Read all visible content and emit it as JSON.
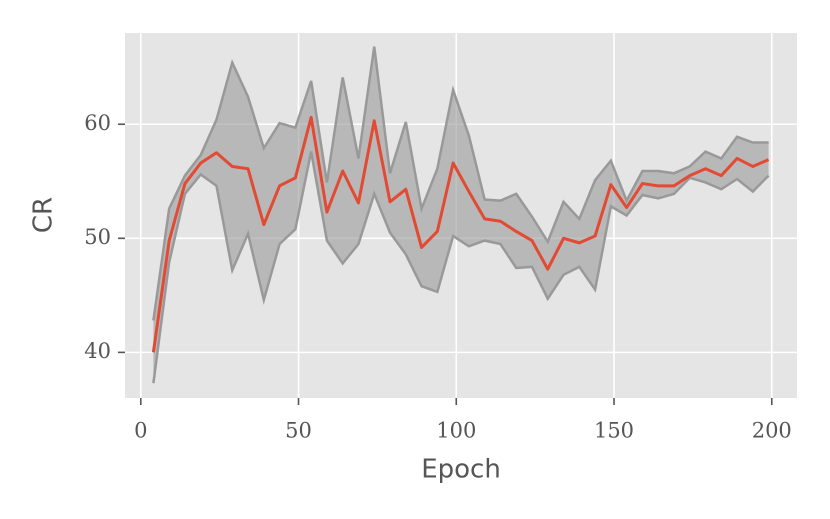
{
  "chart_data": {
    "type": "line",
    "xlabel": "Epoch",
    "ylabel": "CR",
    "x": [
      4,
      9,
      14,
      19,
      24,
      29,
      34,
      39,
      44,
      49,
      54,
      59,
      64,
      69,
      74,
      79,
      84,
      89,
      94,
      99,
      104,
      109,
      114,
      119,
      124,
      129,
      134,
      139,
      144,
      149,
      154,
      159,
      164,
      169,
      174,
      179,
      184,
      189,
      194,
      199
    ],
    "series": [
      {
        "color": "#e24a33",
        "values": [
          40.0,
          49.8,
          54.8,
          56.6,
          57.5,
          56.3,
          56.1,
          51.2,
          54.6,
          55.3,
          60.6,
          52.3,
          55.9,
          53.1,
          60.3,
          53.2,
          54.3,
          49.2,
          50.6,
          56.6,
          54.1,
          51.7,
          51.5,
          50.6,
          49.8,
          47.3,
          50.0,
          49.6,
          50.2,
          54.7,
          52.7,
          54.8,
          54.6,
          54.6,
          55.5,
          56.1,
          55.5,
          57.0,
          56.3,
          56.9
        ]
      }
    ],
    "band": {
      "color": "#999999",
      "upper": [
        42.8,
        52.6,
        55.5,
        57.3,
        60.4,
        65.4,
        62.4,
        57.9,
        60.1,
        59.7,
        63.8,
        54.9,
        64.1,
        57.0,
        66.8,
        55.7,
        60.2,
        52.6,
        56.1,
        63.0,
        59.0,
        53.4,
        53.3,
        53.9,
        51.9,
        49.7,
        53.2,
        51.7,
        55.1,
        56.8,
        53.3,
        55.9,
        55.9,
        55.7,
        56.3,
        57.6,
        57.0,
        58.9,
        58.4,
        58.4
      ],
      "lower": [
        37.3,
        47.9,
        53.9,
        55.6,
        54.6,
        47.2,
        50.4,
        44.6,
        49.5,
        50.8,
        57.6,
        49.8,
        47.8,
        49.5,
        53.9,
        50.5,
        48.6,
        45.8,
        45.3,
        50.2,
        49.3,
        49.8,
        49.5,
        47.4,
        47.5,
        44.7,
        46.8,
        47.5,
        45.5,
        52.8,
        52.0,
        53.8,
        53.5,
        53.9,
        55.3,
        54.9,
        54.3,
        55.2,
        54.1,
        55.5
      ]
    },
    "xlim": [
      -5,
      208
    ],
    "ylim": [
      36,
      68
    ],
    "xticks": [
      0,
      50,
      100,
      150,
      200
    ],
    "yticks": [
      40,
      50,
      60
    ],
    "grid": true
  }
}
